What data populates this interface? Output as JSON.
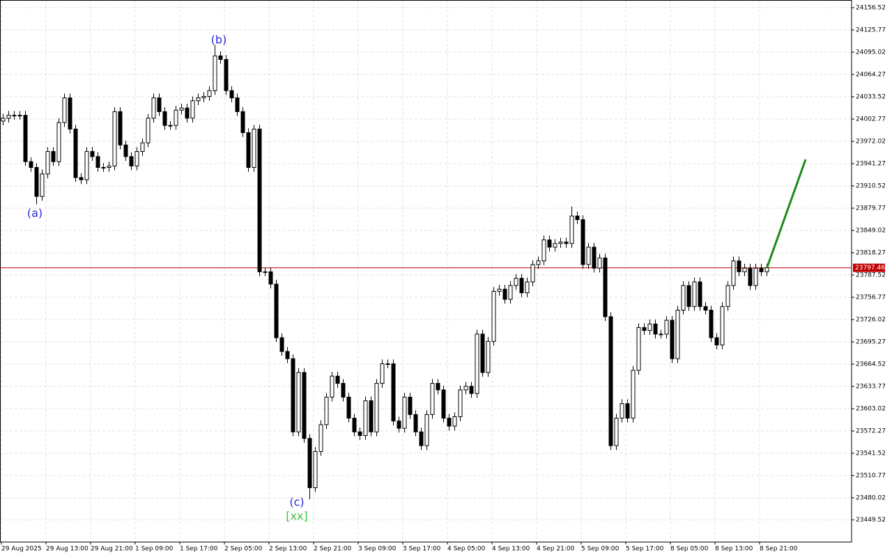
{
  "chart_data": {
    "type": "candlestick",
    "categories": [
      "29 Aug 2025",
      null,
      null,
      null,
      null,
      null,
      null,
      null,
      "29 Aug 13:00",
      null,
      null,
      null,
      null,
      null,
      null,
      null,
      "29 Aug 21:00",
      null,
      null,
      null,
      null,
      null,
      null,
      null,
      "1 Sep 09:00",
      null,
      null,
      null,
      null,
      null,
      null,
      null,
      "1 Sep 17:00",
      null,
      null,
      null,
      null,
      null,
      null,
      null,
      "2 Sep 05:00",
      null,
      null,
      null,
      null,
      null,
      null,
      null,
      "2 Sep 13:00",
      null,
      null,
      null,
      null,
      null,
      null,
      null,
      "2 Sep 21:00",
      null,
      null,
      null,
      null,
      null,
      null,
      null,
      "3 Sep 09:00",
      null,
      null,
      null,
      null,
      null,
      null,
      null,
      "3 Sep 17:00",
      null,
      null,
      null,
      null,
      null,
      null,
      null,
      "4 Sep 05:00",
      null,
      null,
      null,
      null,
      null,
      null,
      null,
      "4 Sep 13:00",
      null,
      null,
      null,
      null,
      null,
      null,
      null,
      "4 Sep 21:00",
      null,
      null,
      null,
      null,
      null,
      null,
      null,
      "5 Sep 09:00",
      null,
      null,
      null,
      null,
      null,
      null,
      null,
      "5 Sep 17:00",
      null,
      null,
      null,
      null,
      null,
      null,
      null,
      "8 Sep 05:00",
      null,
      null,
      null,
      null,
      null,
      null,
      null,
      "8 Sep 13:00",
      null,
      null,
      null,
      null,
      null,
      null,
      null,
      "8 Sep 21:00",
      null
    ],
    "open": [
      24000,
      24004,
      24008,
      24008,
      24008,
      23944,
      23936,
      23896,
      23927,
      23958,
      23944,
      23998,
      24032,
      23989,
      23922,
      23919,
      23958,
      23951,
      23936,
      23936,
      23938,
      24013,
      23967,
      23951,
      23938,
      23958,
      23970,
      24004,
      24032,
      24013,
      23994,
      23994,
      24015,
      24018,
      24004,
      24028,
      24032,
      24034,
      24042,
      24090,
      24085,
      24042,
      24032,
      24013,
      23984,
      23936,
      23989,
      23792,
      23792,
      23775,
      23701,
      23682,
      23672,
      23571,
      23653,
      23562,
      23494,
      23544,
      23581,
      23619,
      23648,
      23638,
      23619,
      23590,
      23571,
      23566,
      23614,
      23571,
      23638,
      23665,
      23665,
      23586,
      23576,
      23619,
      23595,
      23571,
      23552,
      23595,
      23638,
      23629,
      23590,
      23579,
      23592,
      23629,
      23634,
      23624,
      23706,
      23653,
      23696,
      23765,
      23768,
      23754,
      23773,
      23783,
      23763,
      23778,
      23802,
      23807,
      23836,
      23826,
      23831,
      23833,
      23831,
      23869,
      23864,
      23802,
      23826,
      23797,
      23811,
      23730,
      23552,
      23590,
      23610,
      23590,
      23656,
      23715,
      23711,
      23720,
      23706,
      23706,
      23725,
      23672,
      23739,
      23773,
      23744,
      23778,
      23744,
      23739,
      23701,
      23691,
      23744,
      23773,
      23807,
      23792,
      23797,
      23773,
      23797,
      23792
    ],
    "high": [
      24010,
      24014,
      24014,
      24014,
      24014,
      23950,
      23942,
      23933,
      23964,
      23964,
      24004,
      24038,
      24038,
      23995,
      23928,
      23964,
      23964,
      23957,
      23942,
      23944,
      24019,
      24019,
      23973,
      23957,
      23964,
      23976,
      24010,
      24038,
      24038,
      24019,
      24000,
      24021,
      24024,
      24024,
      24034,
      24038,
      24040,
      24048,
      24105,
      24096,
      24091,
      24048,
      24038,
      24019,
      23990,
      23995,
      23995,
      23798,
      23798,
      23781,
      23707,
      23688,
      23678,
      23659,
      23659,
      23568,
      23550,
      23587,
      23625,
      23654,
      23654,
      23644,
      23625,
      23596,
      23577,
      23620,
      23620,
      23644,
      23671,
      23671,
      23671,
      23592,
      23625,
      23625,
      23601,
      23577,
      23601,
      23644,
      23644,
      23635,
      23596,
      23598,
      23635,
      23640,
      23640,
      23712,
      23712,
      23702,
      23771,
      23774,
      23774,
      23779,
      23789,
      23789,
      23784,
      23808,
      23813,
      23842,
      23842,
      23837,
      23839,
      23839,
      23882,
      23875,
      23870,
      23832,
      23832,
      23817,
      23817,
      23736,
      23596,
      23616,
      23616,
      23662,
      23721,
      23721,
      23726,
      23726,
      23712,
      23731,
      23731,
      23745,
      23779,
      23779,
      23784,
      23784,
      23750,
      23745,
      23707,
      23750,
      23779,
      23813,
      23813,
      23803,
      23803,
      23803,
      23803,
      23803
    ],
    "low": [
      23994,
      23998,
      24002,
      24002,
      23938,
      23930,
      23885,
      23890,
      23921,
      23938,
      23938,
      23992,
      23983,
      23916,
      23913,
      23913,
      23945,
      23930,
      23930,
      23930,
      23932,
      23961,
      23945,
      23932,
      23932,
      23952,
      23964,
      23998,
      24007,
      23988,
      23988,
      23988,
      24009,
      23998,
      23998,
      24022,
      24026,
      24028,
      24036,
      24079,
      24036,
      24026,
      24007,
      23978,
      23930,
      23930,
      23786,
      23786,
      23769,
      23695,
      23676,
      23666,
      23565,
      23565,
      23556,
      23478,
      23488,
      23538,
      23575,
      23613,
      23632,
      23613,
      23584,
      23565,
      23560,
      23560,
      23565,
      23565,
      23632,
      23659,
      23580,
      23570,
      23570,
      23589,
      23565,
      23546,
      23546,
      23589,
      23623,
      23584,
      23573,
      23573,
      23586,
      23623,
      23618,
      23618,
      23647,
      23647,
      23690,
      23759,
      23748,
      23748,
      23767,
      23757,
      23757,
      23772,
      23796,
      23801,
      23820,
      23820,
      23825,
      23825,
      23825,
      23858,
      23796,
      23796,
      23791,
      23791,
      23724,
      23546,
      23546,
      23584,
      23584,
      23584,
      23650,
      23705,
      23705,
      23700,
      23700,
      23700,
      23666,
      23666,
      23733,
      23738,
      23738,
      23738,
      23733,
      23695,
      23685,
      23685,
      23738,
      23767,
      23786,
      23786,
      23767,
      23767,
      23786,
      23786
    ],
    "close": [
      24004,
      24008,
      24008,
      24008,
      23944,
      23936,
      23896,
      23927,
      23958,
      23944,
      23998,
      24032,
      23989,
      23922,
      23919,
      23958,
      23951,
      23936,
      23936,
      23938,
      24013,
      23967,
      23951,
      23938,
      23958,
      23970,
      24004,
      24032,
      24013,
      23994,
      23994,
      24015,
      24018,
      24004,
      24028,
      24032,
      24034,
      24042,
      24090,
      24085,
      24042,
      24032,
      24013,
      23984,
      23936,
      23989,
      23792,
      23792,
      23775,
      23701,
      23682,
      23672,
      23571,
      23653,
      23562,
      23494,
      23544,
      23581,
      23619,
      23648,
      23638,
      23619,
      23590,
      23571,
      23566,
      23614,
      23571,
      23638,
      23665,
      23665,
      23586,
      23576,
      23619,
      23595,
      23571,
      23552,
      23595,
      23638,
      23629,
      23590,
      23579,
      23592,
      23629,
      23634,
      23624,
      23706,
      23653,
      23696,
      23765,
      23768,
      23754,
      23773,
      23783,
      23763,
      23778,
      23802,
      23807,
      23836,
      23826,
      23831,
      23833,
      23831,
      23869,
      23864,
      23802,
      23826,
      23797,
      23811,
      23730,
      23552,
      23590,
      23610,
      23590,
      23656,
      23715,
      23711,
      23720,
      23706,
      23706,
      23725,
      23672,
      23739,
      23773,
      23744,
      23778,
      23744,
      23739,
      23701,
      23691,
      23744,
      23773,
      23807,
      23792,
      23797,
      23773,
      23797,
      23792,
      23797.46
    ],
    "up_color": "#ffffff",
    "down_color": "#000000",
    "current_price": 23797.46,
    "current_price_color": "#c00000",
    "forecast": {
      "color": "#1a8a1a",
      "value": 23947
    },
    "annotations": [
      {
        "text": "(a)",
        "color": "#2a2ad8"
      },
      {
        "text": "(b)",
        "color": "#2a2ad8"
      },
      {
        "text": "(c)",
        "color": "#2a2ad8"
      },
      {
        "text": "[xx]",
        "color": "#3cc43c"
      }
    ],
    "ylim": [
      23419.49,
      24167.09
    ],
    "yticks": [
      24156.52,
      24125.77,
      24095.02,
      24064.27,
      24033.52,
      24002.77,
      23972.02,
      23941.27,
      23910.52,
      23879.77,
      23849.02,
      23818.27,
      23787.52,
      23756.77,
      23726.02,
      23695.27,
      23664.52,
      23633.77,
      23603.02,
      23572.27,
      23541.52,
      23510.77,
      23480.02,
      23449.52
    ],
    "grid": true
  }
}
